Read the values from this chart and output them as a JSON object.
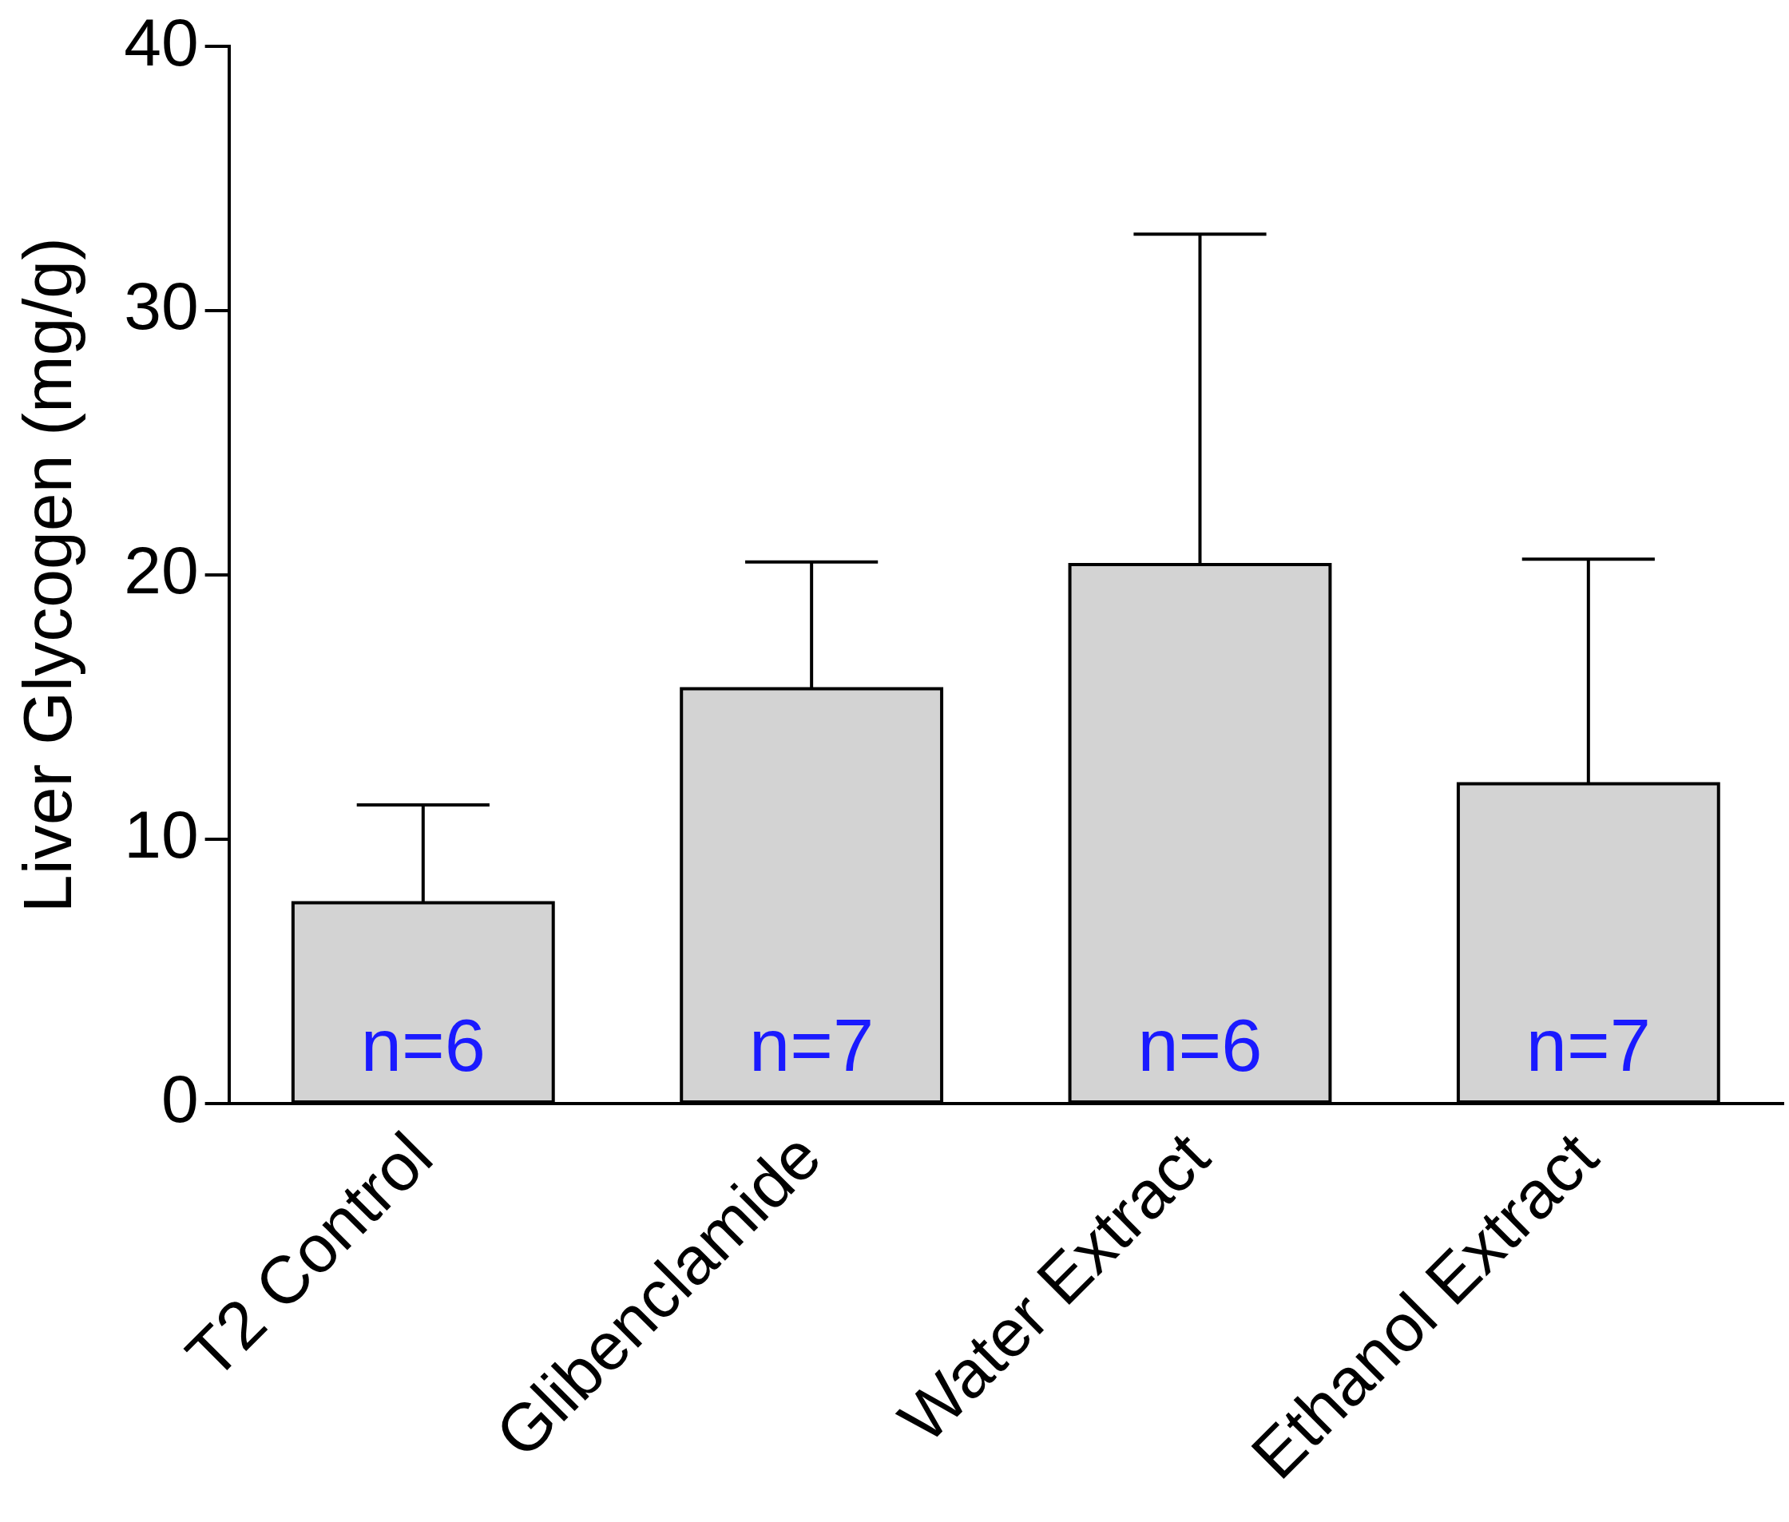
{
  "chart_data": {
    "type": "bar",
    "ylabel": "Liver Glycogen (mg/g)",
    "categories": [
      "T2 Control",
      "Glibenclamide",
      "Water Extract",
      "Ethanol Extract"
    ],
    "values": [
      7.6,
      15.7,
      20.4,
      12.1
    ],
    "errors": [
      [
        7.6,
        11.3
      ],
      [
        15.7,
        20.5
      ],
      [
        20.4,
        32.9
      ],
      [
        12.1,
        20.6
      ]
    ],
    "color": "#d3d3d3",
    "ylim": [
      0,
      40
    ],
    "yticks": [
      0,
      10,
      20,
      30,
      40
    ],
    "grid": false,
    "legend": false,
    "annotations": [
      "n=6",
      "n=7",
      "n=6",
      "n=7"
    ]
  }
}
